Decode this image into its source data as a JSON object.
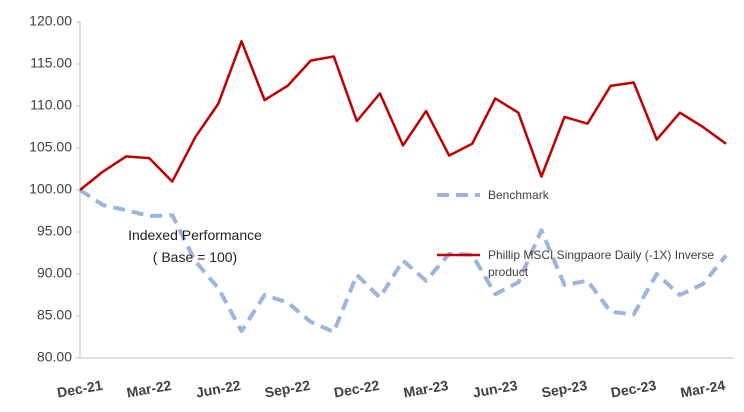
{
  "chart_data": {
    "type": "line",
    "categories": [
      "Dec-21",
      null,
      null,
      "Mar-22",
      null,
      null,
      "Jun-22",
      null,
      null,
      "Sep-22",
      null,
      null,
      "Dec-22",
      null,
      null,
      "Mar-23",
      null,
      null,
      "Jun-23",
      null,
      null,
      "Sep-23",
      null,
      null,
      "Dec-23",
      null,
      null,
      "Mar-24",
      null
    ],
    "series": [
      {
        "name": "Benchmark",
        "color": "#9bb5dc",
        "line_style": "dashed",
        "values": [
          100,
          98.2,
          97.6,
          96.9,
          97,
          91.5,
          88.3,
          83.2,
          87.5,
          86.6,
          84.3,
          83.1,
          89.9,
          87.2,
          91.6,
          89.2,
          92.4,
          92.3,
          87.6,
          89,
          95.2,
          88.7,
          89.2,
          85.5,
          85.2,
          90,
          87.5,
          88.8,
          92.2
        ]
      },
      {
        "name": "Phillip MSCI Singpaore Daily (-1X) Inverse product",
        "color": "#c00000",
        "line_style": "solid",
        "values": [
          100,
          102.2,
          104,
          103.8,
          101,
          106.3,
          110.3,
          117.7,
          110.7,
          112.4,
          115.4,
          115.9,
          108.2,
          111.5,
          105.3,
          109.4,
          104.1,
          105.5,
          110.9,
          109.2,
          101.6,
          108.7,
          107.9,
          112.4,
          112.8,
          106,
          109.2,
          107.5,
          105.5
        ]
      }
    ],
    "ylim": [
      80,
      120
    ],
    "yticks": [
      {
        "value": 80,
        "label": "80.00"
      },
      {
        "value": 85,
        "label": "85.00"
      },
      {
        "value": 90,
        "label": "90.00"
      },
      {
        "value": 95,
        "label": "95.00"
      },
      {
        "value": 100,
        "label": "100.00"
      },
      {
        "value": 105,
        "label": "105.00"
      },
      {
        "value": 110,
        "label": "110.00"
      },
      {
        "value": 115,
        "label": "115.00"
      },
      {
        "value": 120,
        "label": "120.00"
      }
    ],
    "annotation": [
      "Indexed Performance",
      "( Base = 100)"
    ],
    "grid": false
  }
}
